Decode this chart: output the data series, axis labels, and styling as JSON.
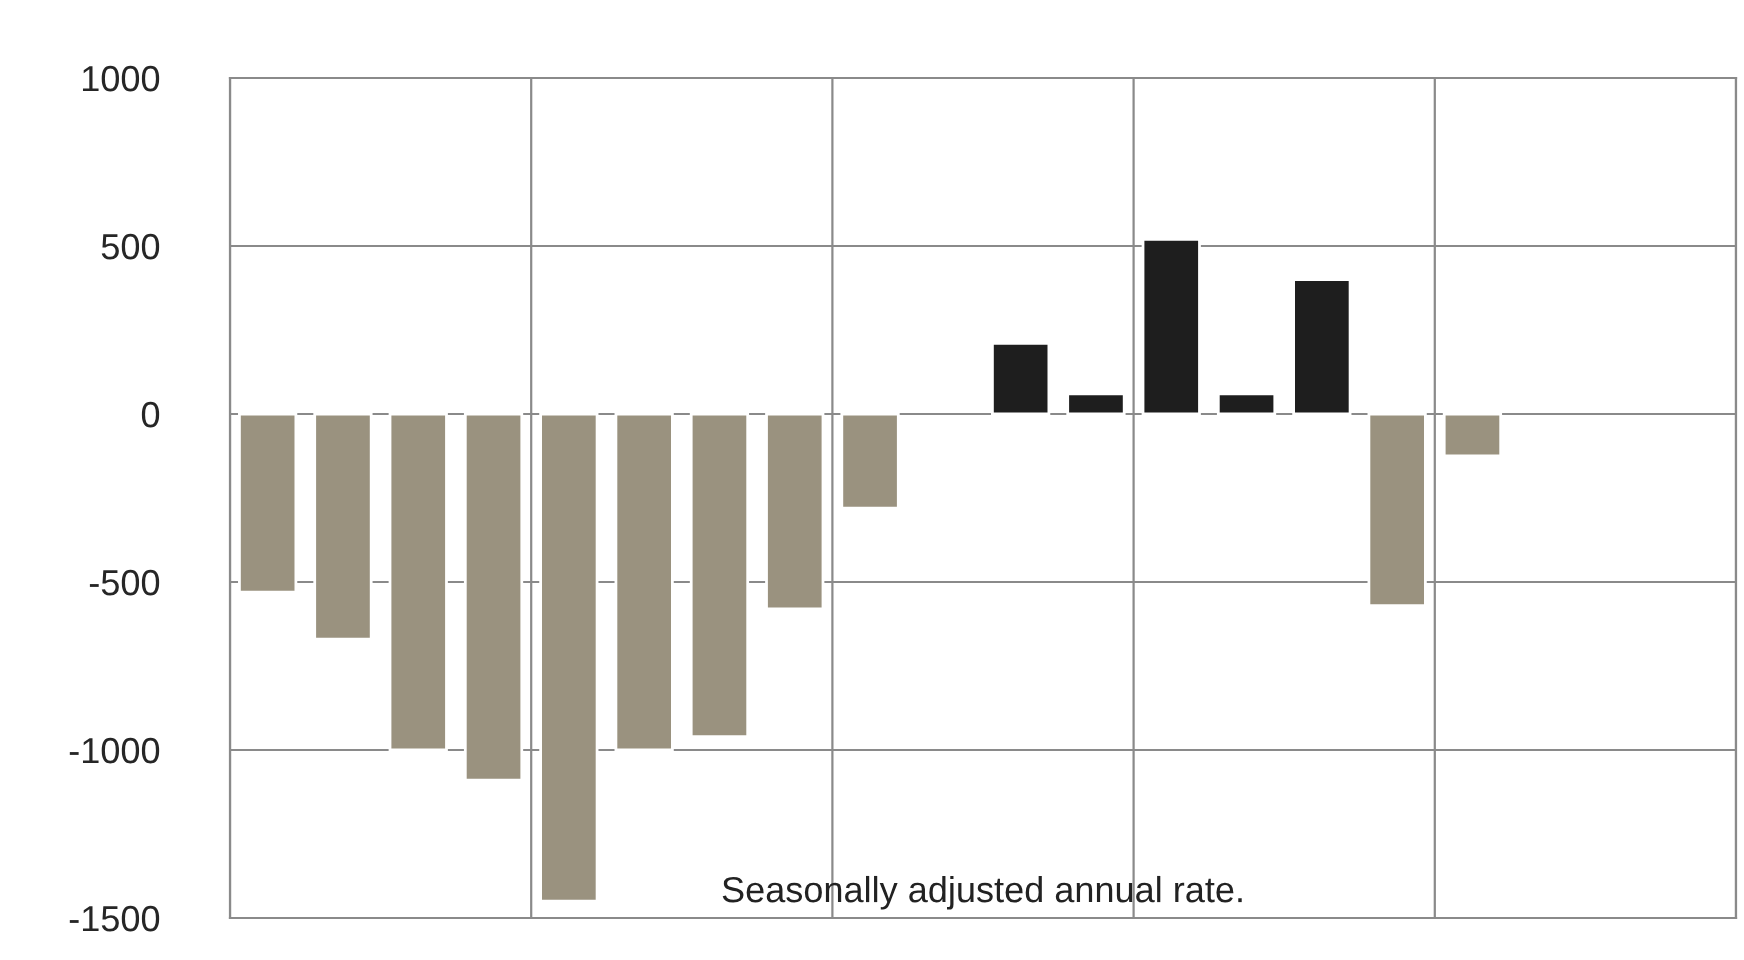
{
  "chart_data": {
    "type": "bar",
    "categories": [
      null,
      null,
      null,
      null,
      null,
      null,
      null,
      null,
      null,
      null,
      null,
      null,
      null,
      null,
      null,
      null,
      null,
      null,
      null,
      null
    ],
    "values": [
      -530,
      -670,
      -1000,
      -1090,
      -1450,
      -1000,
      -960,
      -580,
      -280,
      null,
      210,
      60,
      520,
      60,
      400,
      -570,
      -125,
      null,
      null,
      null
    ],
    "colors": [
      "#9a927f",
      "#9a927f",
      "#9a927f",
      "#9a927f",
      "#9a927f",
      "#9a927f",
      "#9a927f",
      "#9a927f",
      "#9a927f",
      "#9a927f",
      "#1e1e1e",
      "#1e1e1e",
      "#1e1e1e",
      "#1e1e1e",
      "#1e1e1e",
      "#9a927f",
      "#9a927f",
      "#9a927f",
      "#9a927f",
      "#9a927f"
    ],
    "ylim": [
      -1500,
      1000
    ],
    "yticks": [
      -1500,
      -1000,
      -500,
      0,
      500,
      1000
    ],
    "tick_labels": "y",
    "grid": true,
    "annotations": [
      "Seasonally adjusted annual rate."
    ]
  }
}
